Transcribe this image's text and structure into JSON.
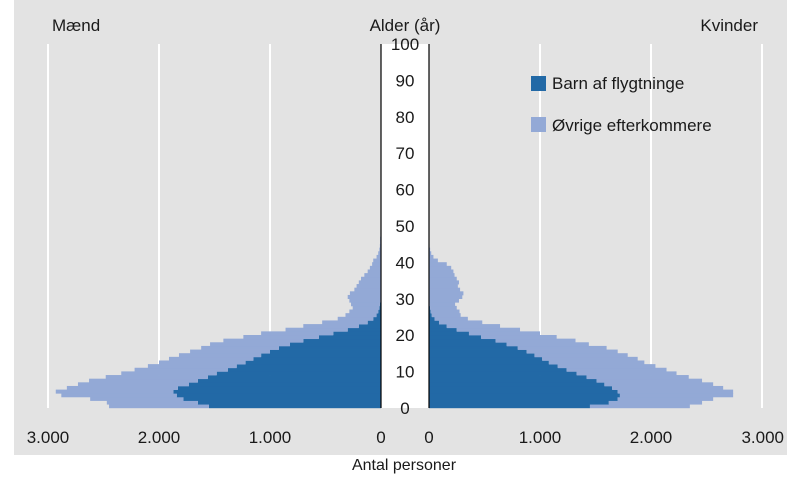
{
  "chart_data": {
    "type": "bar",
    "orientation": "horizontal-population-pyramid",
    "title": "",
    "left_label": "Mænd",
    "center_label": "Alder (år)",
    "right_label": "Kvinder",
    "xlabel": "Antal personer",
    "x_ticks_left": [
      "3.000",
      "2.000",
      "1.000",
      "0"
    ],
    "x_ticks_right": [
      "0",
      "1.000",
      "2.000",
      "3.000"
    ],
    "age_ticks": [
      "0",
      "10",
      "20",
      "30",
      "40",
      "50",
      "60",
      "70",
      "80",
      "90",
      "100"
    ],
    "xlim": [
      0,
      3000
    ],
    "ylim": [
      0,
      100
    ],
    "grid": true,
    "legend_position": "top-right",
    "ages": [
      0,
      1,
      2,
      3,
      4,
      5,
      6,
      7,
      8,
      9,
      10,
      11,
      12,
      13,
      14,
      15,
      16,
      17,
      18,
      19,
      20,
      21,
      22,
      23,
      24,
      25,
      26,
      27,
      28,
      29,
      30,
      31,
      32,
      33,
      34,
      35,
      36,
      37,
      38,
      39,
      40,
      41,
      42,
      43,
      44,
      45,
      46,
      47,
      48,
      49,
      50,
      51,
      52,
      53,
      54,
      55,
      56,
      57,
      58,
      59,
      60,
      61,
      62
    ],
    "series": [
      {
        "name": "Barn af flygtninge",
        "color": "#2269a6",
        "men": [
          1550,
          1650,
          1780,
          1840,
          1870,
          1830,
          1730,
          1650,
          1560,
          1480,
          1380,
          1300,
          1220,
          1150,
          1080,
          1000,
          920,
          820,
          700,
          560,
          430,
          300,
          200,
          120,
          70,
          40,
          25,
          15,
          10,
          5,
          0,
          0,
          0,
          0,
          0,
          0,
          0,
          0,
          0,
          0,
          0,
          0,
          0,
          0,
          0,
          0,
          0,
          0,
          0,
          0,
          0,
          0,
          0,
          0,
          0,
          0,
          0,
          0,
          0,
          0,
          0,
          0,
          0
        ],
        "women": [
          1450,
          1620,
          1700,
          1720,
          1700,
          1650,
          1580,
          1510,
          1420,
          1330,
          1240,
          1160,
          1080,
          1020,
          950,
          880,
          800,
          700,
          600,
          470,
          360,
          250,
          160,
          90,
          50,
          25,
          15,
          10,
          5,
          0,
          0,
          0,
          0,
          0,
          0,
          0,
          0,
          0,
          0,
          0,
          0,
          0,
          0,
          0,
          0,
          0,
          0,
          0,
          0,
          0,
          0,
          0,
          0,
          0,
          0,
          0,
          0,
          0,
          0,
          0,
          0,
          0,
          0,
          0,
          0
        ]
      },
      {
        "name": "Øvrige efterkommere",
        "color": "#93a9d6",
        "men": [
          900,
          820,
          840,
          1040,
          1060,
          1000,
          1000,
          980,
          920,
          860,
          840,
          800,
          780,
          760,
          740,
          720,
          700,
          720,
          720,
          680,
          650,
          560,
          500,
          410,
          320,
          280,
          260,
          240,
          260,
          280,
          300,
          280,
          240,
          220,
          200,
          180,
          150,
          120,
          100,
          80,
          70,
          40,
          25,
          15,
          10,
          8,
          8,
          5,
          5,
          0,
          0,
          0,
          0,
          0,
          0,
          0,
          0,
          0,
          0,
          0,
          0,
          0,
          0
        ],
        "women": [
          900,
          840,
          860,
          1020,
          1040,
          1000,
          980,
          950,
          920,
          900,
          900,
          880,
          860,
          860,
          840,
          820,
          800,
          740,
          720,
          680,
          640,
          570,
          480,
          390,
          300,
          260,
          260,
          240,
          230,
          270,
          300,
          310,
          280,
          260,
          270,
          250,
          230,
          220,
          200,
          160,
          80,
          40,
          20,
          10,
          5,
          0,
          0,
          0,
          0,
          0,
          0,
          0,
          0,
          0,
          0,
          0,
          0,
          0,
          0,
          0,
          0,
          0,
          0
        ]
      }
    ]
  }
}
